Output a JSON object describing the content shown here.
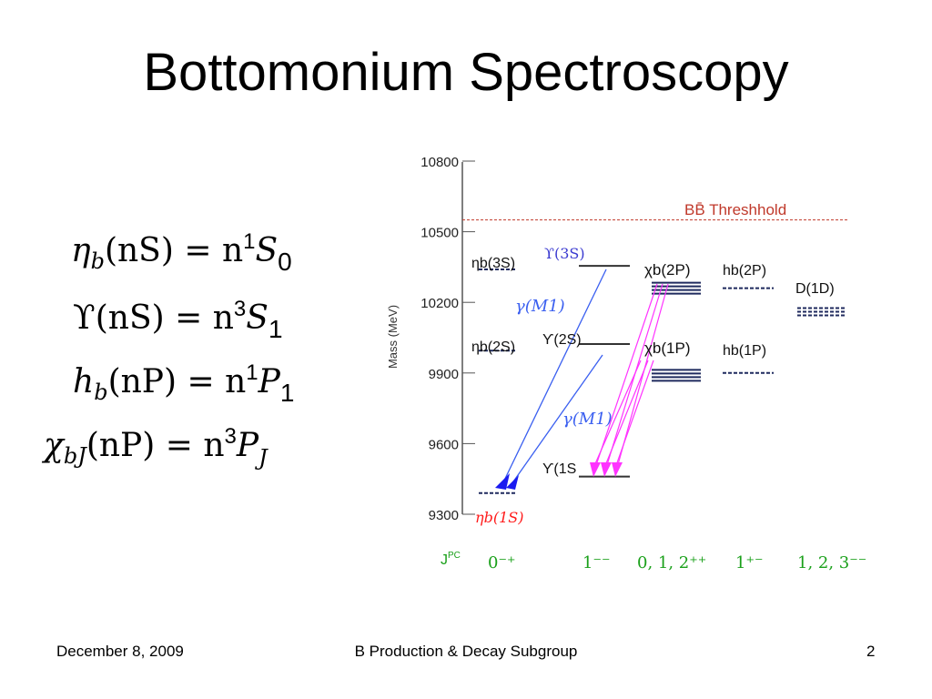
{
  "title": "Bottomonium Spectroscopy",
  "equations": [
    {
      "base": "η",
      "sub": "b",
      "arg": "(nS) = n",
      "sup": "1",
      "term": "S",
      "tsub": "0"
    },
    {
      "base": "ϒ",
      "sub": "",
      "arg": "(nS) = n",
      "sup": "3",
      "term": "S",
      "tsub": "1"
    },
    {
      "base": "h",
      "sub": "b",
      "arg": "(nP) = n",
      "sup": "1",
      "term": "P",
      "tsub": "1"
    },
    {
      "base": "χ",
      "sub": "bJ",
      "arg": "(nP) = n",
      "sup": "3",
      "term": "P",
      "tsub": "J"
    }
  ],
  "diagram": {
    "y_axis_label": "Mass (MeV)",
    "y_ticks": [
      "10800",
      "10500",
      "10200",
      "9900",
      "9600",
      "9300"
    ],
    "y_tick_values": [
      10800,
      10500,
      10200,
      9900,
      9600,
      9300
    ],
    "threshold_label": "BB̄ Threshhold",
    "threshold_value": 10550,
    "states": [
      {
        "label": "ηb(3S)",
        "mass": 10340,
        "style": "dashed"
      },
      {
        "label": "ηb(2S)",
        "mass": 9995,
        "style": "dashed"
      },
      {
        "label": "ϒ(3S)",
        "mass": 10355,
        "style": "solid"
      },
      {
        "label": "ϒ(2S)",
        "mass": 10023,
        "style": "solid"
      },
      {
        "label": "ϒ(1S",
        "mass": 9460,
        "style": "solid"
      },
      {
        "label": "ηb(1S)",
        "mass": 9390,
        "style": "dashed"
      },
      {
        "label": "χb(2P)",
        "mass": 10260,
        "style": "solid"
      },
      {
        "label": "χb(1P)",
        "mass": 9890,
        "style": "solid"
      },
      {
        "label": "hb(2P)",
        "mass": 10260,
        "style": "dashed"
      },
      {
        "label": "hb(1P)",
        "mass": 9900,
        "style": "dashed"
      },
      {
        "label": "D(1D)",
        "mass": 10160,
        "style": "dashed"
      }
    ],
    "transition_labels": [
      "γ(M1)",
      "γ(M1)"
    ],
    "jpc_label": "J",
    "jpc_label_sup": "PC",
    "jpc_values": [
      "0⁻⁺",
      "1⁻⁻",
      "0, 1, 2⁺⁺",
      "1⁺⁻",
      "1, 2, 3⁻⁻"
    ],
    "colors": {
      "threshold": "#c0392b",
      "transition_m1": "#3a5ff0",
      "transition_e1": "#ff33ff",
      "level": "#1f2a5e",
      "jpc": "#1aa01a",
      "eta_label": "#ff1a1a",
      "upsilon_label": "#3a3ad0"
    }
  },
  "footer": {
    "date": "December 8, 2009",
    "center": "B Production & Decay Subgroup",
    "page": "2"
  }
}
